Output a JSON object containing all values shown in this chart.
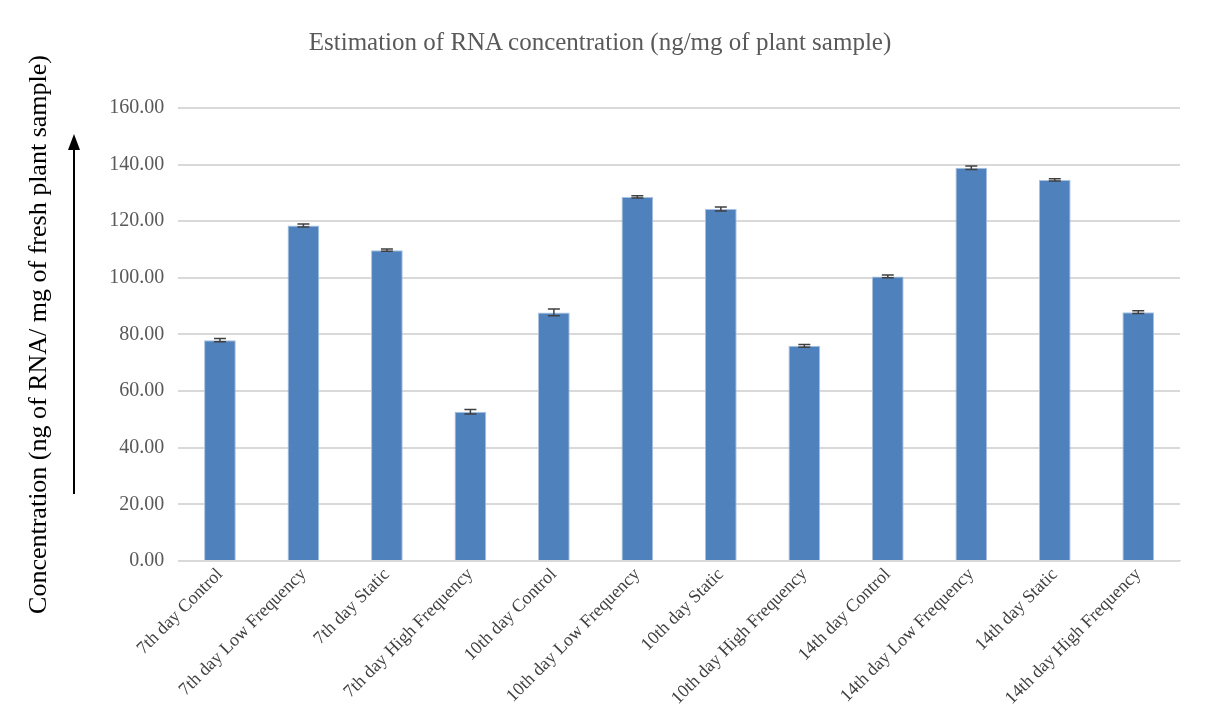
{
  "chart_data": {
    "type": "bar",
    "title": "Estimation of RNA concentration (ng/mg of plant sample)",
    "ylabel": "Concentration (ng of RNA/ mg of fresh plant sample)",
    "categories": [
      "7th day Control",
      "7th day Low Frequency",
      "7th day Static",
      "7th day High Frequency",
      "10th day Control",
      "10th day Low Frequency",
      "10th day Static",
      "10th day High Frequency",
      "14th day Control",
      "14th day Low Frequency",
      "14th day Static",
      "14th day High Frequency"
    ],
    "values": [
      78,
      118.5,
      109.8,
      52.7,
      87.8,
      128.6,
      124.3,
      76,
      100.5,
      138.9,
      134.6,
      87.9
    ],
    "errors": [
      0.6,
      0.5,
      0.4,
      0.8,
      1.2,
      0.4,
      0.7,
      0.5,
      0.5,
      0.6,
      0.4,
      0.5
    ],
    "color": "#4f81bd",
    "ylim": [
      0,
      160
    ],
    "yticks": [
      {
        "value": 0,
        "label": "0.00"
      },
      {
        "value": 20,
        "label": "20.00"
      },
      {
        "value": 40,
        "label": "40.00"
      },
      {
        "value": 60,
        "label": "60.00"
      },
      {
        "value": 80,
        "label": "80.00"
      },
      {
        "value": 100,
        "label": "100.00"
      },
      {
        "value": 120,
        "label": "120.00"
      },
      {
        "value": 140,
        "label": "140.00"
      },
      {
        "value": 160,
        "label": "160.00"
      }
    ],
    "grid": "y",
    "legend": false
  }
}
